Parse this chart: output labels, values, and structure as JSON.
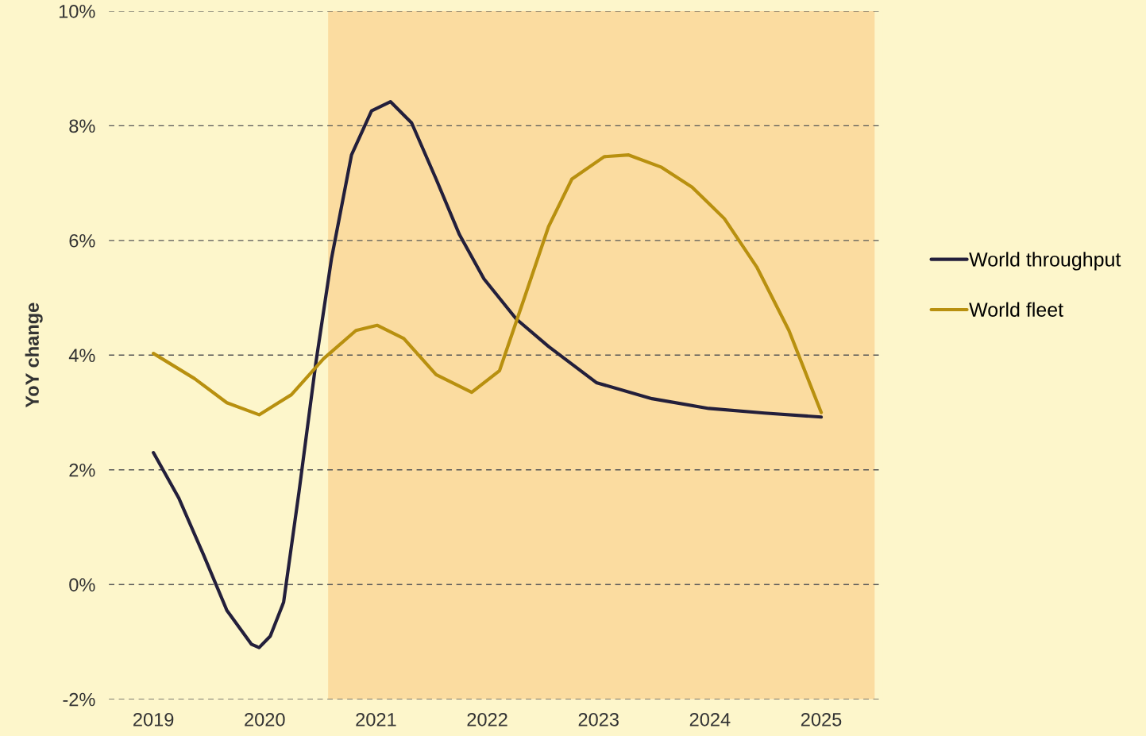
{
  "chart_data": {
    "type": "line",
    "ylabel": "YoY change",
    "xlim": [
      2018.6,
      2025.55
    ],
    "xticks": [
      2019,
      2020,
      2021,
      2022,
      2023,
      2024,
      2025
    ],
    "ylim": [
      -2,
      10
    ],
    "yticks": [
      {
        "value": -2,
        "label": "-2%"
      },
      {
        "value": 0,
        "label": "0%"
      },
      {
        "value": 2,
        "label": "2%"
      },
      {
        "value": 4,
        "label": "4%"
      },
      {
        "value": 6,
        "label": "6%"
      },
      {
        "value": 8,
        "label": "8%"
      },
      {
        "value": 10,
        "label": "10%"
      }
    ],
    "grid": "y",
    "legend": "right",
    "marker": "none",
    "line_style": "solid",
    "bands": [
      {
        "axis": "x",
        "from": 2020.57,
        "to": 2025.48,
        "label": null,
        "color": "#fbdca0"
      }
    ],
    "series": [
      {
        "name": "World throughput",
        "color": "#231f3b",
        "x": [
          2019,
          2019.23,
          2019.45,
          2019.66,
          2019.88,
          2019.95,
          2020.05,
          2020.17,
          2020.31,
          2020.46,
          2020.6,
          2020.78,
          2020.96,
          2021.13,
          2021.32,
          2021.54,
          2021.75,
          2021.97,
          2022.26,
          2022.55,
          2022.98,
          2023.48,
          2023.99,
          2024.49,
          2025
        ],
        "values": [
          2.3,
          1.5,
          0.52,
          -0.45,
          -1.04,
          -1.1,
          -0.9,
          -0.31,
          1.64,
          3.87,
          5.68,
          7.49,
          8.26,
          8.42,
          8.05,
          7.07,
          6.1,
          5.33,
          4.63,
          4.15,
          3.52,
          3.24,
          3.07,
          2.99,
          2.92
        ]
      },
      {
        "name": "World fleet",
        "color": "#b8900f",
        "x": [
          2019,
          2019.37,
          2019.66,
          2019.95,
          2020.24,
          2020.53,
          2020.82,
          2021.01,
          2021.25,
          2021.54,
          2021.86,
          2022.11,
          2022.33,
          2022.55,
          2022.76,
          2023.05,
          2023.27,
          2023.56,
          2023.84,
          2024.13,
          2024.42,
          2024.71,
          2025
        ],
        "values": [
          4.03,
          3.59,
          3.17,
          2.96,
          3.31,
          3.94,
          4.43,
          4.52,
          4.29,
          3.66,
          3.35,
          3.73,
          4.98,
          6.24,
          7.07,
          7.46,
          7.49,
          7.28,
          6.93,
          6.38,
          5.54,
          4.43,
          3.0
        ]
      }
    ]
  }
}
